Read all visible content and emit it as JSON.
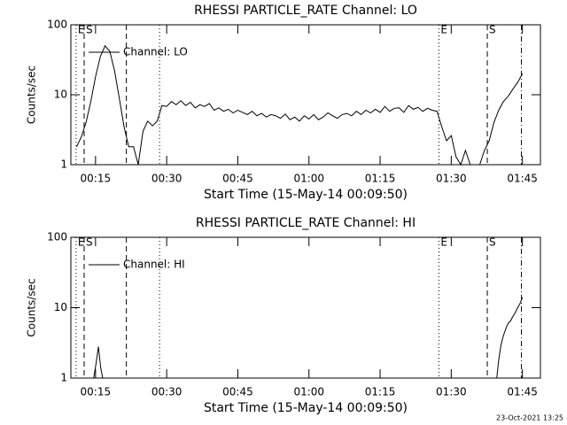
{
  "chart_data": [
    {
      "type": "line",
      "title": "RHESSI PARTICLE_RATE Channel: LO",
      "xlabel": "Start Time (15-May-14 00:09:50)",
      "ylabel": "Counts/sec",
      "log_y": true,
      "ylim": [
        1,
        100
      ],
      "yticks": [
        1,
        10,
        100
      ],
      "xlim": [
        9.8,
        108.8
      ],
      "xticks": [
        {
          "value": 15,
          "label": "00:15"
        },
        {
          "value": 30,
          "label": "00:30"
        },
        {
          "value": 45,
          "label": "00:45"
        },
        {
          "value": 60,
          "label": "01:00"
        },
        {
          "value": 75,
          "label": "01:15"
        },
        {
          "value": 90,
          "label": "01:30"
        },
        {
          "value": 105,
          "label": "01:45"
        }
      ],
      "x": [
        11,
        12,
        13,
        14,
        15,
        16,
        17,
        18,
        19,
        20,
        21,
        22,
        23,
        24,
        25,
        26,
        27,
        28,
        29,
        30,
        31,
        32,
        33,
        34,
        35,
        36,
        37,
        38,
        39,
        40,
        41,
        42,
        43,
        44,
        45,
        46,
        47,
        48,
        49,
        50,
        51,
        52,
        53,
        54,
        55,
        56,
        57,
        58,
        59,
        60,
        61,
        62,
        63,
        64,
        65,
        66,
        67,
        68,
        69,
        70,
        71,
        72,
        73,
        74,
        75,
        76,
        77,
        78,
        79,
        80,
        81,
        82,
        83,
        84,
        85,
        86,
        87,
        88,
        89,
        90,
        91,
        92,
        93,
        94,
        95,
        96,
        97,
        98,
        99,
        100,
        101,
        102,
        103,
        104,
        105
      ],
      "series": [
        {
          "name": "Channel: LO",
          "color": "#000000",
          "values": [
            1.8,
            2.5,
            4,
            8,
            18,
            35,
            50,
            42,
            22,
            9,
            3.5,
            1.8,
            1.8,
            1,
            3,
            4.2,
            3.6,
            4.2,
            7,
            6.8,
            8,
            7.2,
            8.2,
            7,
            7.8,
            6.5,
            7.2,
            6.8,
            7.5,
            6,
            6.5,
            5.8,
            6.2,
            5.5,
            6,
            5.6,
            5.2,
            5.8,
            5,
            5.4,
            4.8,
            5.2,
            5,
            4.6,
            5.3,
            4.4,
            4.8,
            4.2,
            5,
            4.5,
            5.2,
            4.4,
            4.8,
            5.5,
            5,
            4.6,
            5.2,
            5.4,
            5,
            5.8,
            5.2,
            6,
            5.5,
            6.2,
            5.6,
            6.8,
            5.8,
            6.4,
            6.5,
            5.6,
            7,
            6.2,
            6.6,
            5.8,
            6.4,
            6,
            5.8,
            3.5,
            2.2,
            2.6,
            1.3,
            1,
            1.6,
            1,
            1,
            1,
            1.6,
            2.2,
            4,
            6,
            8,
            9.5,
            12,
            15,
            20
          ]
        }
      ],
      "markers": [
        {
          "x": 10.9,
          "label": "E",
          "style": "dotted"
        },
        {
          "x": 12.6,
          "label": "S",
          "style": "dashed"
        },
        {
          "x": 21.5,
          "style": "dashed"
        },
        {
          "x": 28.5,
          "style": "dotted"
        },
        {
          "x": 87.4,
          "label": "E",
          "style": "dotted"
        },
        {
          "x": 97.6,
          "label": "S",
          "style": "dashed"
        },
        {
          "x": 104.8,
          "style": "dashdot"
        }
      ]
    },
    {
      "type": "line",
      "title": "RHESSI PARTICLE_RATE Channel: HI",
      "xlabel": "Start Time (15-May-14 00:09:50)",
      "ylabel": "Counts/sec",
      "log_y": true,
      "ylim": [
        1,
        100
      ],
      "yticks": [
        1,
        10,
        100
      ],
      "xlim": [
        9.8,
        108.8
      ],
      "xticks": [
        {
          "value": 15,
          "label": "00:15"
        },
        {
          "value": 30,
          "label": "00:30"
        },
        {
          "value": 45,
          "label": "00:45"
        },
        {
          "value": 60,
          "label": "01:00"
        },
        {
          "value": 75,
          "label": "01:15"
        },
        {
          "value": 90,
          "label": "01:30"
        },
        {
          "value": 105,
          "label": "01:45"
        }
      ],
      "x": [
        14.6,
        15.1,
        15.6,
        16.1,
        16.5,
        60,
        99.6,
        100,
        100.5,
        101,
        101.5,
        102,
        102.5,
        103,
        103.5,
        104,
        104.5,
        105
      ],
      "series": [
        {
          "name": "Channel: HI",
          "color": "#000000",
          "values": [
            1,
            1.6,
            2.8,
            1.4,
            1,
            null,
            1,
            1.8,
            3,
            4,
            5,
            6,
            6.5,
            7.5,
            8.5,
            10,
            11.5,
            14
          ]
        }
      ],
      "markers": [
        {
          "x": 10.9,
          "label": "E",
          "style": "dotted"
        },
        {
          "x": 12.6,
          "label": "S",
          "style": "dashed"
        },
        {
          "x": 21.5,
          "style": "dashed"
        },
        {
          "x": 28.5,
          "style": "dotted"
        },
        {
          "x": 87.4,
          "label": "E",
          "style": "dotted"
        },
        {
          "x": 97.6,
          "label": "S",
          "style": "dashed"
        },
        {
          "x": 104.8,
          "style": "dashdot"
        }
      ]
    }
  ],
  "footer": "23-Oct-2021 13:25"
}
